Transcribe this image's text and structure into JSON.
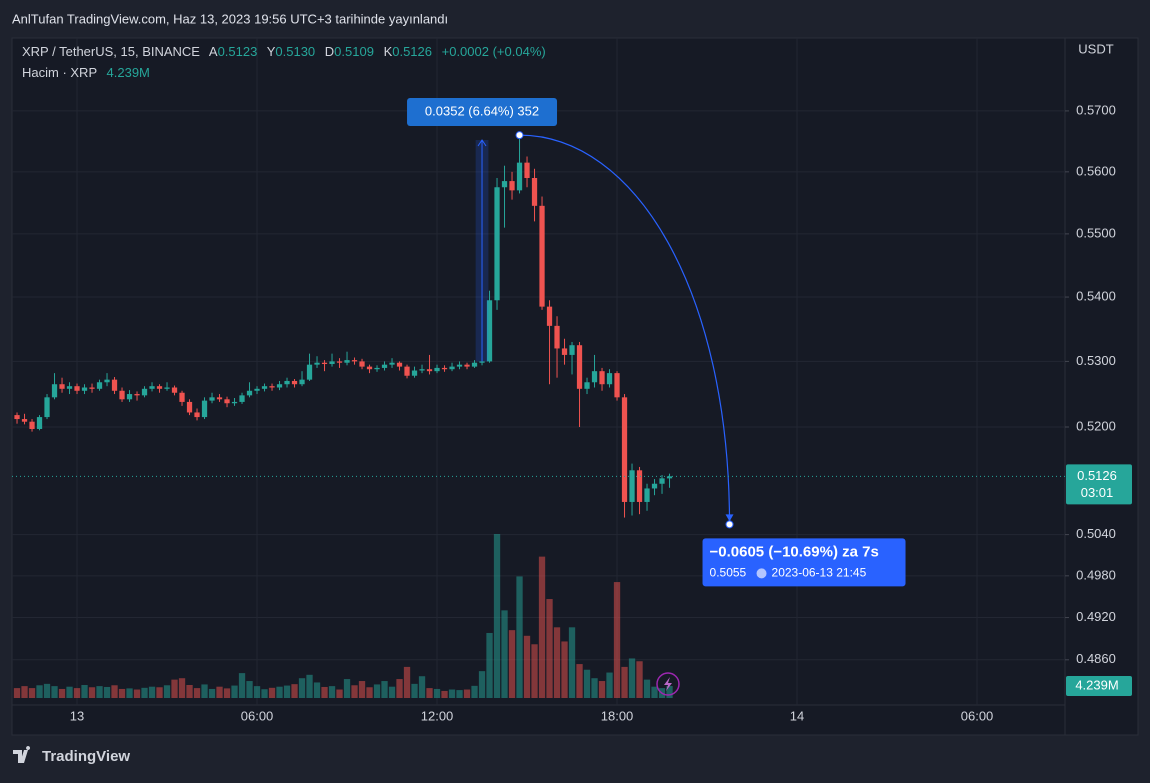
{
  "header": {
    "title": "AnlTufan TradingView.com, Haz 13, 2023 19:56 UTC+3 tarihinde yayınlandı"
  },
  "footer": {
    "brand": "TradingView"
  },
  "chart_data": {
    "type": "candlestick",
    "log": true,
    "grid": true,
    "up_color": "#26a69a",
    "down_color": "#ef5350",
    "legend": {
      "symbol": "XRP / TetherUS, 15, BINANCE",
      "labels": [
        "A",
        "Y",
        "D",
        "K"
      ],
      "values": [
        "0.5123",
        "0.5130",
        "0.5109",
        "0.5126"
      ],
      "change": "+0.0002 (+0.04%)"
    },
    "axis_unit": "USDT",
    "ylim": [
      0.4755,
      0.5822
    ],
    "xlim": [
      -0.67,
      139.73
    ],
    "yticks": [
      {
        "value": 0.57,
        "label": "0.5700"
      },
      {
        "value": 0.56,
        "label": "0.5600"
      },
      {
        "value": 0.55,
        "label": "0.5500"
      },
      {
        "value": 0.54,
        "label": "0.5400"
      },
      {
        "value": 0.53,
        "label": "0.5300"
      },
      {
        "value": 0.52,
        "label": "0.5200"
      },
      {
        "value": 0.504,
        "label": "0.5040"
      },
      {
        "value": 0.498,
        "label": "0.4980"
      },
      {
        "value": 0.492,
        "label": "0.4920"
      },
      {
        "value": 0.486,
        "label": "0.4860"
      }
    ],
    "xticks": [
      {
        "value": 8,
        "label": "13"
      },
      {
        "value": 32,
        "label": "06:00"
      },
      {
        "value": 56,
        "label": "12:00"
      },
      {
        "value": 80,
        "label": "18:00"
      },
      {
        "value": 104,
        "label": "14"
      },
      {
        "value": 128,
        "label": "06:00"
      }
    ],
    "candles": [
      [
        0.5218,
        0.5222,
        0.5205,
        0.5212
      ],
      [
        0.5212,
        0.522,
        0.5204,
        0.5208
      ],
      [
        0.5208,
        0.5212,
        0.5193,
        0.5197
      ],
      [
        0.5197,
        0.5218,
        0.5195,
        0.5215
      ],
      [
        0.5215,
        0.525,
        0.5212,
        0.5245
      ],
      [
        0.5245,
        0.5282,
        0.5242,
        0.5265
      ],
      [
        0.5265,
        0.5275,
        0.5252,
        0.5258
      ],
      [
        0.5258,
        0.5268,
        0.525,
        0.5262
      ],
      [
        0.5262,
        0.5266,
        0.525,
        0.5255
      ],
      [
        0.5255,
        0.5265,
        0.525,
        0.526
      ],
      [
        0.526,
        0.5266,
        0.5252,
        0.5258
      ],
      [
        0.5258,
        0.5272,
        0.5255,
        0.5268
      ],
      [
        0.5268,
        0.5282,
        0.5262,
        0.5272
      ],
      [
        0.5272,
        0.5276,
        0.525,
        0.5255
      ],
      [
        0.5255,
        0.526,
        0.5238,
        0.5242
      ],
      [
        0.5242,
        0.5256,
        0.5238,
        0.525
      ],
      [
        0.525,
        0.5254,
        0.524,
        0.5248
      ],
      [
        0.5248,
        0.5262,
        0.5245,
        0.5258
      ],
      [
        0.5258,
        0.5268,
        0.5254,
        0.5262
      ],
      [
        0.5262,
        0.5265,
        0.5252,
        0.5258
      ],
      [
        0.5258,
        0.5268,
        0.5255,
        0.526
      ],
      [
        0.526,
        0.5263,
        0.5248,
        0.5252
      ],
      [
        0.5252,
        0.5255,
        0.5232,
        0.5238
      ],
      [
        0.5238,
        0.5242,
        0.5218,
        0.5222
      ],
      [
        0.5222,
        0.5228,
        0.521,
        0.5215
      ],
      [
        0.5215,
        0.5245,
        0.5212,
        0.524
      ],
      [
        0.524,
        0.5252,
        0.5236,
        0.5245
      ],
      [
        0.5245,
        0.525,
        0.5238,
        0.5242
      ],
      [
        0.5242,
        0.5246,
        0.523,
        0.5236
      ],
      [
        0.5236,
        0.5244,
        0.5232,
        0.5238
      ],
      [
        0.5238,
        0.5252,
        0.5235,
        0.5248
      ],
      [
        0.5248,
        0.5268,
        0.5245,
        0.5255
      ],
      [
        0.5255,
        0.5262,
        0.525,
        0.5258
      ],
      [
        0.5258,
        0.5266,
        0.5254,
        0.5262
      ],
      [
        0.5262,
        0.5266,
        0.5255,
        0.526
      ],
      [
        0.526,
        0.527,
        0.5256,
        0.5265
      ],
      [
        0.5265,
        0.5275,
        0.526,
        0.527
      ],
      [
        0.527,
        0.5273,
        0.526,
        0.5265
      ],
      [
        0.5265,
        0.5285,
        0.5262,
        0.5272
      ],
      [
        0.5272,
        0.5312,
        0.527,
        0.5295
      ],
      [
        0.5295,
        0.5308,
        0.529,
        0.5298
      ],
      [
        0.5298,
        0.5302,
        0.5285,
        0.5296
      ],
      [
        0.5296,
        0.5312,
        0.5292,
        0.53
      ],
      [
        0.53,
        0.5305,
        0.529,
        0.5298
      ],
      [
        0.5298,
        0.5315,
        0.5294,
        0.5302
      ],
      [
        0.5302,
        0.5306,
        0.5295,
        0.53
      ],
      [
        0.53,
        0.5304,
        0.5288,
        0.5292
      ],
      [
        0.5292,
        0.5295,
        0.5282,
        0.5288
      ],
      [
        0.5288,
        0.5294,
        0.5284,
        0.529
      ],
      [
        0.529,
        0.53,
        0.5286,
        0.5295
      ],
      [
        0.5295,
        0.5305,
        0.529,
        0.5298
      ],
      [
        0.5298,
        0.53,
        0.5286,
        0.5292
      ],
      [
        0.5292,
        0.5295,
        0.5274,
        0.5278
      ],
      [
        0.5278,
        0.5292,
        0.5275,
        0.5286
      ],
      [
        0.5286,
        0.5295,
        0.5282,
        0.5288
      ],
      [
        0.5288,
        0.531,
        0.528,
        0.5285
      ],
      [
        0.5285,
        0.5295,
        0.5282,
        0.529
      ],
      [
        0.529,
        0.5294,
        0.5284,
        0.5288
      ],
      [
        0.5288,
        0.5298,
        0.5285,
        0.5292
      ],
      [
        0.5292,
        0.53,
        0.5288,
        0.5295
      ],
      [
        0.5295,
        0.5298,
        0.5288,
        0.5292
      ],
      [
        0.5292,
        0.5302,
        0.529,
        0.5298
      ],
      [
        0.5298,
        0.5305,
        0.5294,
        0.53
      ],
      [
        0.53,
        0.541,
        0.5298,
        0.5395
      ],
      [
        0.5395,
        0.559,
        0.538,
        0.5575
      ],
      [
        0.5575,
        0.561,
        0.551,
        0.5585
      ],
      [
        0.5585,
        0.56,
        0.5555,
        0.557
      ],
      [
        0.557,
        0.566,
        0.5565,
        0.5615
      ],
      [
        0.5615,
        0.5625,
        0.5575,
        0.559
      ],
      [
        0.559,
        0.5605,
        0.552,
        0.5545
      ],
      [
        0.5545,
        0.556,
        0.538,
        0.5385
      ],
      [
        0.5385,
        0.5395,
        0.5265,
        0.5355
      ],
      [
        0.5355,
        0.537,
        0.5275,
        0.532
      ],
      [
        0.532,
        0.5335,
        0.5295,
        0.531
      ],
      [
        0.531,
        0.533,
        0.528,
        0.5325
      ],
      [
        0.5325,
        0.533,
        0.52,
        0.5258
      ],
      [
        0.5258,
        0.5275,
        0.525,
        0.5268
      ],
      [
        0.5268,
        0.531,
        0.526,
        0.5285
      ],
      [
        0.5285,
        0.529,
        0.5255,
        0.5265
      ],
      [
        0.5265,
        0.5288,
        0.526,
        0.5282
      ],
      [
        0.5282,
        0.5285,
        0.524,
        0.5245
      ],
      [
        0.5245,
        0.525,
        0.5065,
        0.5088
      ],
      [
        0.5088,
        0.5145,
        0.5068,
        0.5135
      ],
      [
        0.5135,
        0.514,
        0.507,
        0.5088
      ],
      [
        0.5088,
        0.5115,
        0.5075,
        0.5108
      ],
      [
        0.5108,
        0.5122,
        0.5098,
        0.5115
      ],
      [
        0.5115,
        0.5128,
        0.51,
        0.5123
      ],
      [
        0.5123,
        0.513,
        0.5109,
        0.5126
      ]
    ],
    "volume": {
      "name": "Hacim · XRP",
      "last_label": "4.239M",
      "values": [
        3.5,
        4.2,
        3.5,
        4.5,
        5.0,
        4.2,
        3.2,
        4.0,
        3.5,
        4.6,
        3.8,
        4.2,
        3.9,
        4.5,
        3.2,
        3.4,
        3.0,
        3.6,
        4.0,
        3.8,
        4.5,
        6.5,
        7.0,
        4.6,
        3.5,
        4.8,
        3.2,
        4.0,
        3.4,
        4.4,
        8.8,
        6.0,
        4.2,
        3.1,
        3.6,
        4.0,
        4.4,
        4.9,
        7.0,
        8.2,
        5.5,
        3.9,
        4.2,
        3.0,
        6.7,
        4.5,
        6.0,
        3.8,
        4.8,
        6.0,
        4.0,
        6.7,
        11.0,
        5.0,
        7.7,
        3.5,
        3.2,
        2.5,
        3.0,
        2.8,
        3.0,
        4.3,
        9.5,
        23.0,
        58.0,
        31.0,
        24.0,
        43.0,
        22.0,
        19.0,
        50.0,
        35.0,
        25.0,
        20.0,
        25.0,
        12.0,
        10.0,
        7.0,
        6.0,
        9.0,
        41.0,
        11.0,
        14.0,
        13.0,
        6.5,
        4.0,
        3.5,
        4.239
      ]
    },
    "last_price": {
      "value": 0.5126,
      "countdown": "03:01"
    },
    "measure": {
      "index": 62,
      "from": 0.53,
      "to": 0.5652,
      "label": "0.0352 (6.64%) 352"
    },
    "forecast": {
      "start_index": 67,
      "start": 0.566,
      "end_index": 95,
      "end": 0.5055,
      "change_label": "−0.0605 (−10.69%) za 7s",
      "date_label": "2023-06-13  21:45"
    }
  }
}
